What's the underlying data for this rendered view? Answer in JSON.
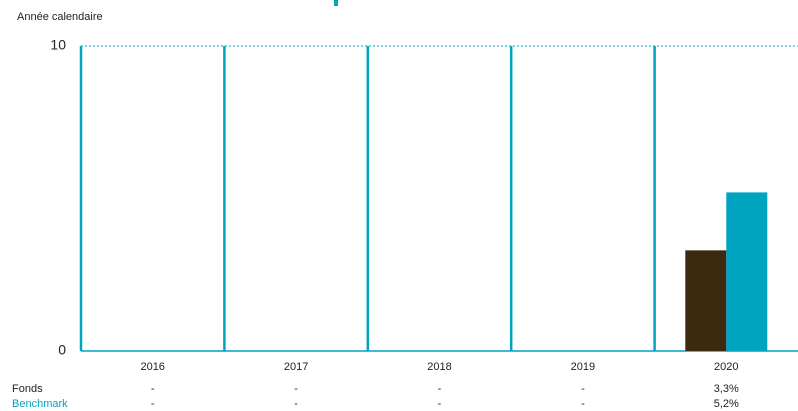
{
  "chart_data": {
    "type": "bar",
    "subtitle": "Année calendaire",
    "categories": [
      "2016",
      "2017",
      "2018",
      "2019",
      "2020"
    ],
    "series": [
      {
        "name": "Fonds",
        "color": "#3b2a10",
        "values": [
          null,
          null,
          null,
          null,
          3.3
        ],
        "value_labels": [
          "-",
          "-",
          "-",
          "-",
          "3,3%"
        ]
      },
      {
        "name": "Benchmark",
        "color": "#00a3c0",
        "values": [
          null,
          null,
          null,
          null,
          5.2
        ],
        "value_labels": [
          "-",
          "-",
          "-",
          "-",
          "5,2%"
        ]
      }
    ],
    "ylim": [
      0,
      10
    ],
    "yticks": [
      0,
      10
    ],
    "grid": true
  }
}
